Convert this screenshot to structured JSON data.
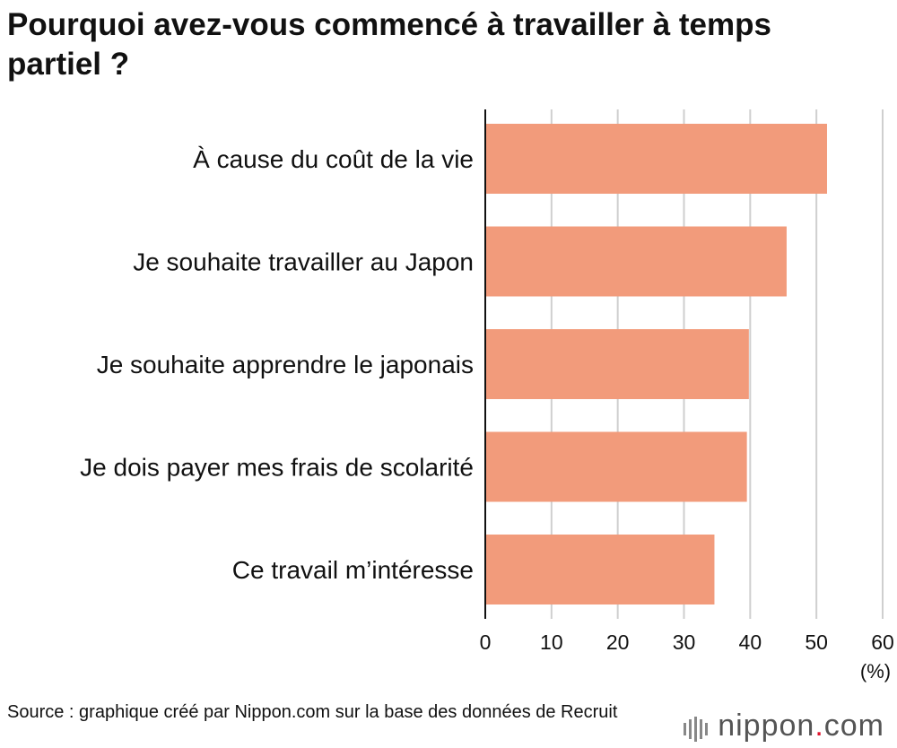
{
  "chart_data": {
    "type": "bar",
    "orientation": "horizontal",
    "title": "Pourquoi avez-vous commencé à travailler à temps partiel ?",
    "categories": [
      "À cause du coût de la vie",
      "Je souhaite travailler au Japon",
      "Je souhaite apprendre le japonais",
      "Je dois payer mes frais de scolarité",
      "Ce travail m’intéresse"
    ],
    "values": [
      51.6,
      45.5,
      39.8,
      39.5,
      34.6
    ],
    "xlim": [
      0,
      60
    ],
    "xticks": [
      0,
      10,
      20,
      30,
      40,
      50,
      60
    ],
    "xunit": "(%)",
    "grid": true,
    "bar_color": "#f29b7b"
  },
  "source": "Source : graphique créé par Nippon.com sur la base des données de Recruit",
  "logo": {
    "name": "nippon",
    "dot": ".",
    "suffix": "com"
  }
}
